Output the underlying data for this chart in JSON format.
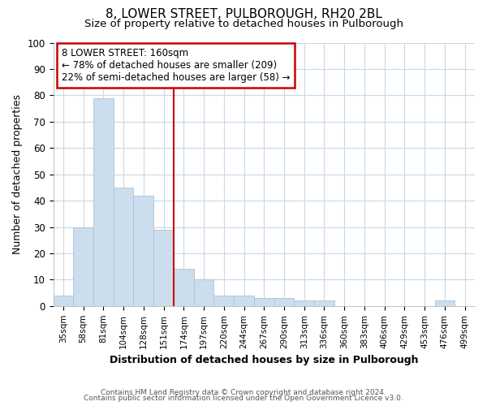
{
  "title1": "8, LOWER STREET, PULBOROUGH, RH20 2BL",
  "title2": "Size of property relative to detached houses in Pulborough",
  "xlabel": "Distribution of detached houses by size in Pulborough",
  "ylabel": "Number of detached properties",
  "categories": [
    "35sqm",
    "58sqm",
    "81sqm",
    "104sqm",
    "128sqm",
    "151sqm",
    "174sqm",
    "197sqm",
    "220sqm",
    "244sqm",
    "267sqm",
    "290sqm",
    "313sqm",
    "336sqm",
    "360sqm",
    "383sqm",
    "406sqm",
    "429sqm",
    "453sqm",
    "476sqm",
    "499sqm"
  ],
  "values": [
    4,
    30,
    79,
    45,
    42,
    29,
    14,
    10,
    4,
    4,
    3,
    3,
    2,
    2,
    0,
    0,
    0,
    0,
    0,
    2,
    0
  ],
  "bar_color": "#ccdded",
  "bar_edge_color": "#aac4d8",
  "red_line_x": 6,
  "ylim": [
    0,
    100
  ],
  "yticks": [
    0,
    10,
    20,
    30,
    40,
    50,
    60,
    70,
    80,
    90,
    100
  ],
  "annotation_line1": "8 LOWER STREET: 160sqm",
  "annotation_line2": "← 78% of detached houses are smaller (209)",
  "annotation_line3": "22% of semi-detached houses are larger (58) →",
  "annotation_box_color": "#ffffff",
  "annotation_box_edge": "#cc0000",
  "red_line_color": "#cc0000",
  "footer1": "Contains HM Land Registry data © Crown copyright and database right 2024.",
  "footer2": "Contains public sector information licensed under the Open Government Licence v3.0.",
  "background_color": "#ffffff",
  "grid_color": "#c8d8e8",
  "title1_fontsize": 11,
  "title2_fontsize": 9.5
}
